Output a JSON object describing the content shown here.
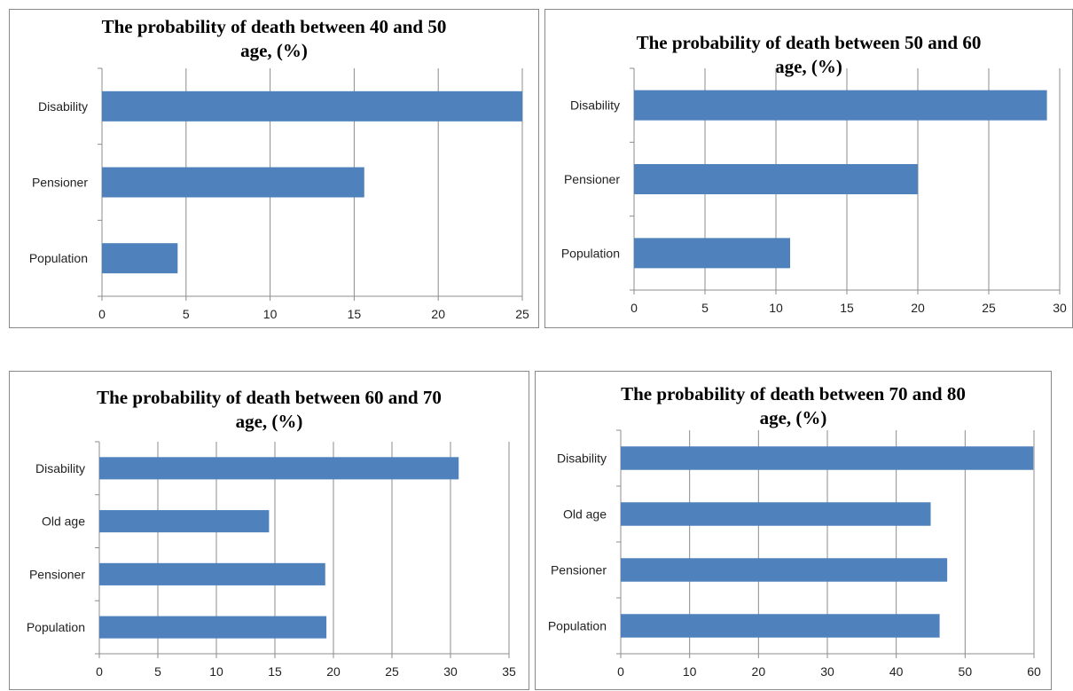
{
  "chart_data": [
    {
      "type": "bar",
      "orientation": "horizontal",
      "title_lines": [
        "The probability  of death between 40 and 50",
        "age, (%)"
      ],
      "categories": [
        "Disability",
        "Pensioner",
        "Population"
      ],
      "values": [
        25,
        15.6,
        4.5
      ],
      "xlim": [
        0,
        25
      ],
      "ticks": [
        "0",
        "5",
        "10",
        "15",
        "20",
        "25"
      ],
      "grid": "vertical",
      "bar_color": "#4f81bd"
    },
    {
      "type": "bar",
      "orientation": "horizontal",
      "title_lines": [
        "The probability  of death between 50 and 60",
        "age, (%)"
      ],
      "categories": [
        "Disability",
        "Pensioner",
        "Population"
      ],
      "values": [
        29.1,
        20,
        11
      ],
      "xlim": [
        0,
        30
      ],
      "ticks": [
        "0",
        "5",
        "10",
        "15",
        "20",
        "25",
        "30"
      ],
      "grid": "vertical",
      "bar_color": "#4f81bd"
    },
    {
      "type": "bar",
      "orientation": "horizontal",
      "title_lines": [
        "The probability  of death between 60 and 70",
        "age, (%)"
      ],
      "categories": [
        "Disability",
        "Old age",
        "Pensioner",
        "Population"
      ],
      "values": [
        30.7,
        14.5,
        19.3,
        19.4
      ],
      "xlim": [
        0,
        35
      ],
      "ticks": [
        "0",
        "5",
        "10",
        "15",
        "20",
        "25",
        "30",
        "35"
      ],
      "grid": "vertical",
      "bar_color": "#4f81bd"
    },
    {
      "type": "bar",
      "orientation": "horizontal",
      "title_lines": [
        "The probability  of death between 70 and 80",
        "age, (%)"
      ],
      "categories": [
        "Disability",
        "Old age",
        "Pensioner",
        "Population"
      ],
      "values": [
        59.9,
        45,
        47.4,
        46.3
      ],
      "xlim": [
        0,
        60
      ],
      "ticks": [
        "0",
        "10",
        "20",
        "30",
        "40",
        "50",
        "60"
      ],
      "grid": "vertical",
      "bar_color": "#4f81bd"
    }
  ]
}
